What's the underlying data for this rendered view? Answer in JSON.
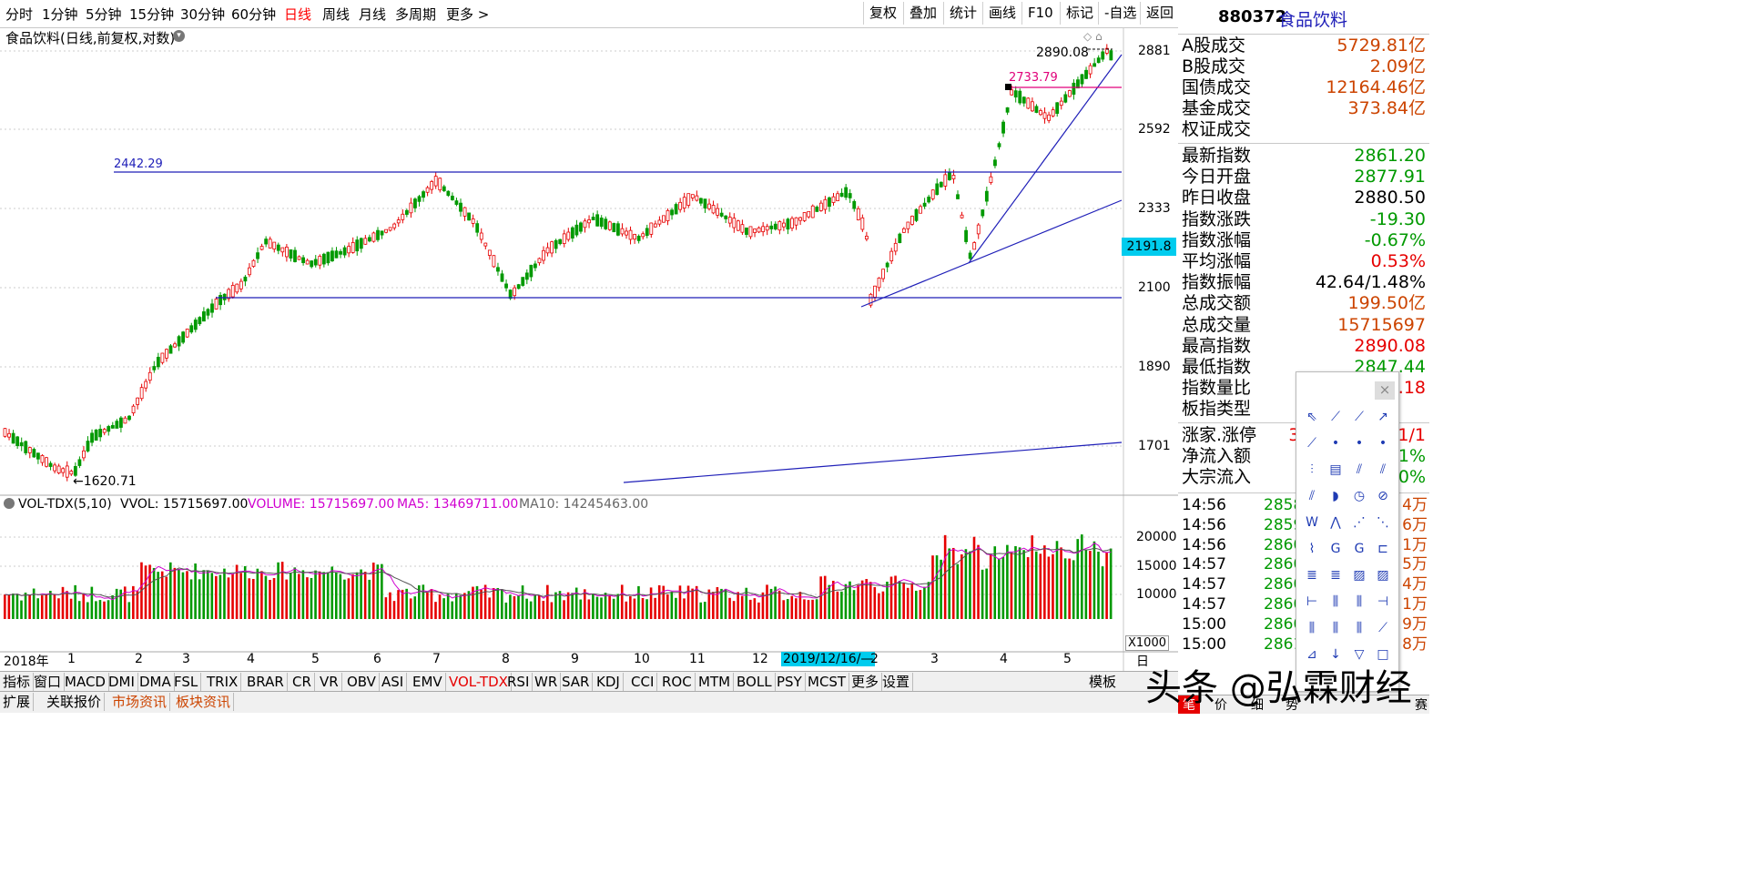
{
  "toolbar": {
    "periods": [
      "分时",
      "1分钟",
      "5分钟",
      "15分钟",
      "30分钟",
      "60分钟",
      "日线",
      "周线",
      "月线",
      "多周期",
      "更多 >"
    ],
    "active_period": "日线",
    "buttons": [
      "复权",
      "叠加",
      "统计",
      "画线",
      "F10",
      "标记",
      "-自选",
      "返回"
    ]
  },
  "chart": {
    "title": "食品饮料(日线,前复权,对数)",
    "price_axis": [
      "2881",
      "2592",
      "2333",
      "2100",
      "1890",
      "1701"
    ],
    "current_price_tag": "2191.8",
    "annotations": {
      "high_label": "2890.08",
      "mid_label": "2733.79",
      "resistance_label": "2442.29",
      "low_label": "1620.71"
    },
    "vol_header": {
      "name": "VOL-TDX(5,10)",
      "vvol": "VVOL: 15715697.00",
      "volume": "VOLUME: 15715697.00",
      "ma5": "MA5: 13469711.00",
      "ma10": "MA10: 14245463.00"
    },
    "vol_axis": [
      "20000",
      "15000",
      "10000"
    ],
    "vol_unit": "X1000",
    "x_axis": [
      "2018年",
      "1",
      "2",
      "3",
      "4",
      "5",
      "6",
      "7",
      "8",
      "9",
      "10",
      "11",
      "12",
      "2",
      "3",
      "4",
      "5"
    ],
    "x_cursor_label": "2019/12/16/—",
    "right_corner_label": "日"
  },
  "indicator_tabs": [
    "指标",
    "窗口",
    "MACD",
    "DMI",
    "DMA",
    "FSL",
    "TRIX",
    "BRAR",
    "CR",
    "VR",
    "OBV",
    "ASI",
    "EMV",
    "VOL-TDX",
    "RSI",
    "WR",
    "SAR",
    "KDJ",
    "CCI",
    "ROC",
    "MTM",
    "BOLL",
    "PSY",
    "MCST",
    "更多",
    "设置"
  ],
  "active_indicator": "VOL-TDX",
  "template_label": "模板",
  "bottom_tabs": [
    "扩展",
    "关联报价",
    "市场资讯",
    "板块资讯"
  ],
  "right_panel": {
    "code": "880372",
    "name": "食品饮料",
    "rows1": [
      {
        "label": "A股成交",
        "value": "5729.81亿",
        "color": "orange"
      },
      {
        "label": "B股成交",
        "value": "2.09亿",
        "color": "orange"
      },
      {
        "label": "国债成交",
        "value": "12164.46亿",
        "color": "orange"
      },
      {
        "label": "基金成交",
        "value": "373.84亿",
        "color": "orange"
      },
      {
        "label": "权证成交",
        "value": "",
        "color": "orange"
      }
    ],
    "rows2": [
      {
        "label": "最新指数",
        "value": "2861.20",
        "color": "green"
      },
      {
        "label": "今日开盘",
        "value": "2877.91",
        "color": "green"
      },
      {
        "label": "昨日收盘",
        "value": "2880.50",
        "color": "black"
      },
      {
        "label": "指数涨跌",
        "value": "-19.30",
        "color": "green"
      },
      {
        "label": "指数涨幅",
        "value": "-0.67%",
        "color": "green"
      },
      {
        "label": "平均涨幅",
        "value": "0.53%",
        "color": "red"
      },
      {
        "label": "指数振幅",
        "value": "42.64/1.48%",
        "color": "black"
      },
      {
        "label": "总成交额",
        "value": "199.50亿",
        "color": "orange"
      },
      {
        "label": "总成交量",
        "value": "15715697",
        "color": "orange"
      },
      {
        "label": "最高指数",
        "value": "2890.08",
        "color": "red"
      },
      {
        "label": "最低指数",
        "value": "2847.44",
        "color": "green"
      },
      {
        "label": "指数量比",
        "value": "1.18",
        "color": "red"
      },
      {
        "label": "板指类型",
        "value": "",
        "color": "black"
      }
    ],
    "rows3": [
      {
        "label": "涨家.涨停",
        "value": "38/3",
        "value2": "1/1",
        "color": "red"
      },
      {
        "label": "净流入额",
        "value": "",
        "value2": "-1%",
        "color": "green"
      },
      {
        "label": "大宗流入",
        "value": "",
        "value2": "-0%",
        "color": "green"
      }
    ],
    "ticks": [
      {
        "time": "14:56",
        "price": "2858",
        "vol": "4万"
      },
      {
        "time": "14:56",
        "price": "2859",
        "vol": "6万"
      },
      {
        "time": "14:56",
        "price": "2860",
        "vol": "1万"
      },
      {
        "time": "14:57",
        "price": "2860",
        "vol": "5万"
      },
      {
        "time": "14:57",
        "price": "2860",
        "vol": "4万"
      },
      {
        "time": "14:57",
        "price": "2860",
        "vol": "1万"
      },
      {
        "time": "15:00",
        "price": "2860",
        "vol": "9万"
      },
      {
        "time": "15:00",
        "price": "2861",
        "vol": "8万"
      }
    ],
    "bottom_tabs": [
      "笔",
      "价",
      "细",
      "势",
      "",
      "",
      "",
      "赛"
    ]
  },
  "palette": {
    "close": "×"
  },
  "watermark": "头条 @弘霖财经",
  "colors": {
    "up": "#e60000",
    "down": "#009900",
    "line": "#1f1fb8",
    "accent": "#00ccee"
  }
}
